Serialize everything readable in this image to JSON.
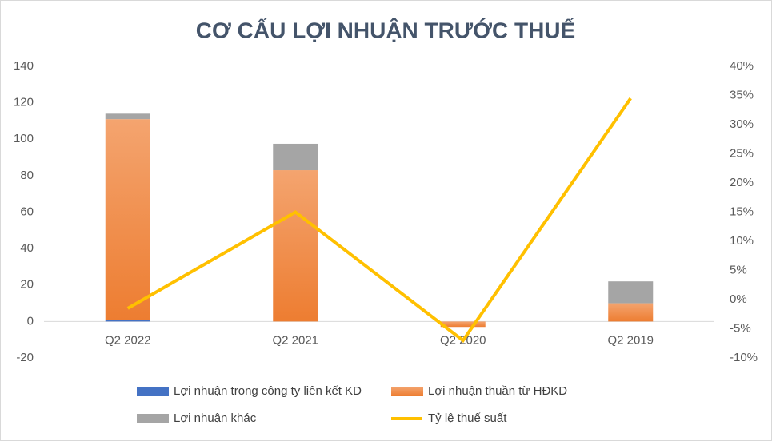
{
  "chart_data": {
    "type": "bar",
    "title": "CƠ CẤU LỢI NHUẬN TRƯỚC THUẾ",
    "categories": [
      "Q2 2022",
      "Q2 2021",
      "Q2 2020",
      "Q2 2019"
    ],
    "series": [
      {
        "name": "Lợi nhuận trong công ty liên kết KD",
        "color": "#4472c4",
        "values": [
          1,
          0,
          0,
          0
        ]
      },
      {
        "name": "Lợi nhuận thuần từ HĐKD",
        "color": "#ed7d31",
        "values": [
          110,
          83,
          -3,
          10
        ]
      },
      {
        "name": "Lợi nhuận khác",
        "color": "#a5a5a5",
        "values": [
          3,
          14.5,
          0,
          12
        ]
      },
      {
        "name": "Tỷ lệ thuế suất",
        "type": "line",
        "axis": "y2",
        "color": "#ffc000",
        "values": [
          -1.5,
          15,
          -7,
          34.5
        ]
      }
    ],
    "ylim": [
      -20,
      140
    ],
    "yticks": [
      -20,
      0,
      20,
      40,
      60,
      80,
      100,
      120,
      140
    ],
    "y2lim": [
      -10,
      40
    ],
    "y2ticks": [
      {
        "value": -10,
        "label": "-10%"
      },
      {
        "value": -5,
        "label": "-5%"
      },
      {
        "value": 0,
        "label": "0%"
      },
      {
        "value": 5,
        "label": "5%"
      },
      {
        "value": 10,
        "label": "10%"
      },
      {
        "value": 15,
        "label": "15%"
      },
      {
        "value": 20,
        "label": "20%"
      },
      {
        "value": 25,
        "label": "25%"
      },
      {
        "value": 30,
        "label": "30%"
      },
      {
        "value": 35,
        "label": "35%"
      },
      {
        "value": 40,
        "label": "40%"
      }
    ],
    "grid": false
  }
}
